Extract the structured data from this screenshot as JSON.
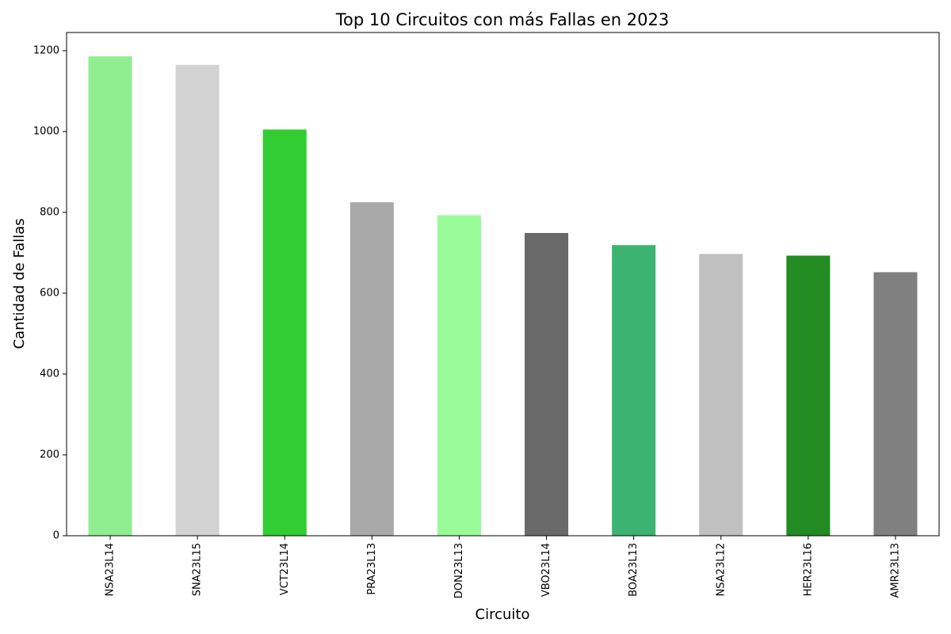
{
  "chart_data": {
    "type": "bar",
    "title": "Top 10 Circuitos con más Fallas en 2023",
    "xlabel": "Circuito",
    "ylabel": "Cantidad de Fallas",
    "categories": [
      "NSA23L14",
      "SNA23L15",
      "VCT23L14",
      "PRA23L13",
      "DON23L13",
      "VBO23L14",
      "BOA23L13",
      "NSA23L12",
      "HER23L16",
      "AMR23L13"
    ],
    "values": [
      1186,
      1165,
      1005,
      825,
      793,
      749,
      719,
      697,
      693,
      652
    ],
    "colors": [
      "#90ee90",
      "#d3d3d3",
      "#32cd32",
      "#a9a9a9",
      "#98fb98",
      "#696969",
      "#3cb371",
      "#c0c0c0",
      "#228b22",
      "#808080"
    ],
    "ylim": [
      0,
      1245
    ],
    "yticks": [
      0,
      200,
      400,
      600,
      800,
      1000,
      1200
    ],
    "ytick_labels": [
      "0",
      "200",
      "400",
      "600",
      "800",
      "1000",
      "1200"
    ],
    "grid": false,
    "legend": false
  }
}
